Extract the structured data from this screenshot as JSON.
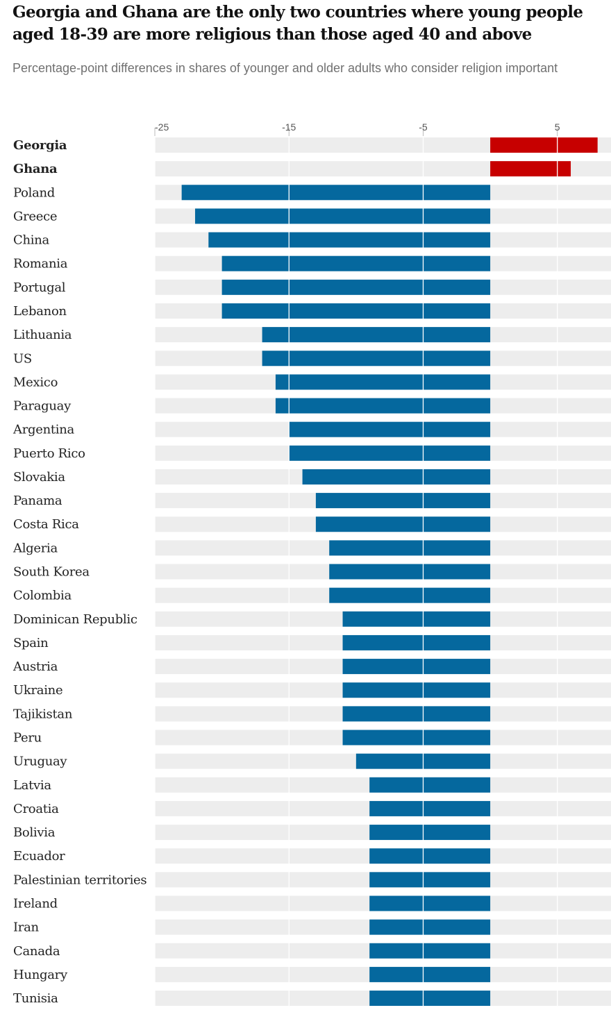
{
  "title": "Georgia and Ghana are the only two countries where young people aged 18-39 are more religious than those aged 40 and above",
  "subtitle": "Percentage-point differences in shares of younger and older adults who consider religion important",
  "colors": {
    "positive": "#c70000",
    "negative": "#05689e",
    "track": "#ededed",
    "grid": "#ffffff"
  },
  "chart_data": {
    "type": "bar",
    "orientation": "horizontal",
    "title": "Georgia and Ghana are the only two countries where young people aged 18-39 are more religious than those aged 40 and above",
    "subtitle": "Percentage-point differences in shares of younger and older adults who consider religion important",
    "xlim": [
      -25,
      9
    ],
    "xticks": [
      -25,
      -15,
      -5,
      5
    ],
    "tick_labels": [
      "-25",
      "-15",
      "-5",
      "5"
    ],
    "grid": true,
    "highlighted": [
      "Georgia",
      "Ghana"
    ],
    "categories": [
      "Georgia",
      "Ghana",
      "Poland",
      "Greece",
      "China",
      "Romania",
      "Portugal",
      "Lebanon",
      "Lithuania",
      "US",
      "Mexico",
      "Paraguay",
      "Argentina",
      "Puerto Rico",
      "Slovakia",
      "Panama",
      "Costa Rica",
      "Algeria",
      "South Korea",
      "Colombia",
      "Dominican Republic",
      "Spain",
      "Austria",
      "Ukraine",
      "Tajikistan",
      "Peru",
      "Uruguay",
      "Latvia",
      "Croatia",
      "Bolivia",
      "Ecuador",
      "Palestinian territories",
      "Ireland",
      "Iran",
      "Canada",
      "Hungary",
      "Tunisia"
    ],
    "values": [
      8,
      6,
      -23,
      -22,
      -21,
      -20,
      -20,
      -20,
      -17,
      -17,
      -16,
      -16,
      -15,
      -15,
      -14,
      -13,
      -13,
      -12,
      -12,
      -12,
      -11,
      -11,
      -11,
      -11,
      -11,
      -11,
      -10,
      -9,
      -9,
      -9,
      -9,
      -9,
      -9,
      -9,
      -9,
      -9,
      -9
    ]
  }
}
